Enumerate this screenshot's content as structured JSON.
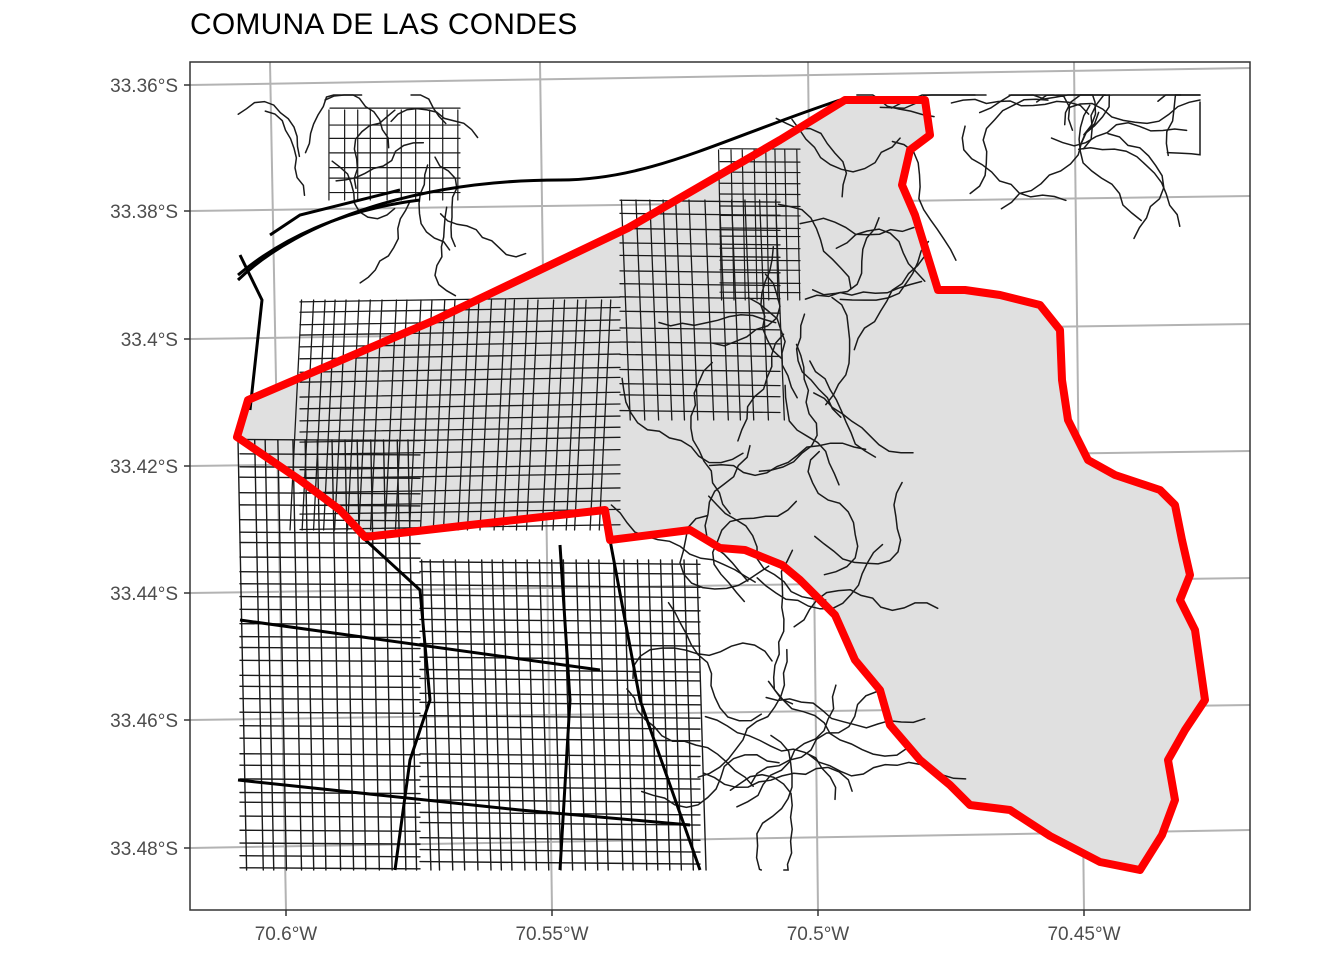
{
  "title": "COMUNA DE LAS CONDES",
  "y_ticks": [
    "33.36°S",
    "33.38°S",
    "33.4°S",
    "33.42°S",
    "33.44°S",
    "33.46°S",
    "33.48°S"
  ],
  "x_ticks": [
    "70.6°W",
    "70.55°W",
    "70.5°W",
    "70.45°W"
  ],
  "colors": {
    "boundary": "#ff0000",
    "comuna_fill": "#e0e0e0",
    "roads": "#1a1a1a",
    "graticule": "#b3b3b3",
    "panel_border": "#333333"
  }
}
